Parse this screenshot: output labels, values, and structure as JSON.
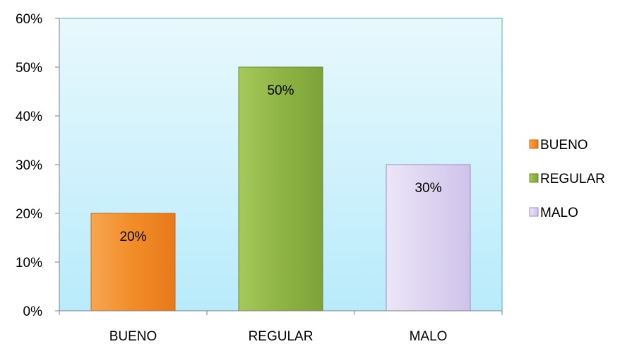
{
  "chart_data": {
    "type": "bar",
    "categories": [
      "BUENO",
      "REGULAR",
      "MALO"
    ],
    "values": [
      20,
      50,
      30
    ],
    "data_labels": [
      "20%",
      "50%",
      "30%"
    ],
    "unit": "%",
    "ylim": [
      0,
      60
    ],
    "yticks": [
      0,
      10,
      20,
      30,
      40,
      50,
      60
    ],
    "ytick_labels": [
      "0%",
      "10%",
      "20%",
      "30%",
      "40%",
      "50%",
      "60%"
    ],
    "title": "",
    "xlabel": "",
    "ylabel": "",
    "grid": false,
    "legend_position": "right",
    "legend": [
      "BUENO",
      "REGULAR",
      "MALO"
    ],
    "colors": {
      "BUENO": "#f28c28",
      "REGULAR": "#8fb444",
      "MALO": "#dcd2f0",
      "plot_background_top": "#e8f8fd",
      "plot_background_bottom": "#b9ebfb",
      "plot_border": "#4bb0c8"
    }
  }
}
